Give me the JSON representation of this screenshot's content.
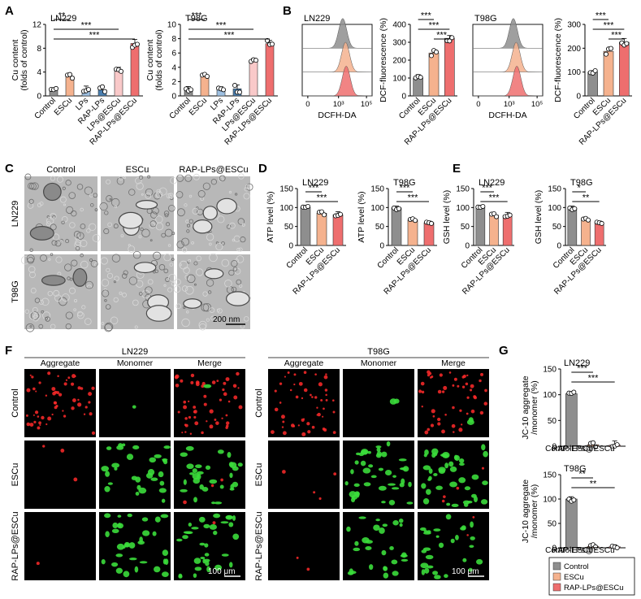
{
  "colors": {
    "control": "#8e8e8e",
    "escu": "#f5b28e",
    "rap": "#ee6e6e",
    "lps": "#9ec0e2",
    "rap_lps": "#4a7fb0",
    "lps_escu": "#f9c9c9",
    "micro_bg": "#b8b8b8"
  },
  "panels": {
    "A": "A",
    "B": "B",
    "C": "C",
    "D": "D",
    "E": "E",
    "F": "F",
    "G": "G"
  },
  "chart_data": [
    {
      "id": "A-LN229",
      "type": "bar",
      "title": "LN229",
      "ylabel": "Cu content (folds of control)",
      "ylim": [
        0,
        12
      ],
      "yticks": [
        "0",
        "4",
        "8",
        "12"
      ],
      "categories": [
        "Control",
        "ESCu",
        "LPs",
        "RAP-LPs",
        "LPs@ESCu",
        "RAP-LPs@ESCu"
      ],
      "values": [
        1.0,
        3.3,
        1.0,
        1.0,
        4.3,
        8.8
      ],
      "bar_colors": [
        "control",
        "escu",
        "lps",
        "rap_lps",
        "lps_escu",
        "rap"
      ],
      "significance": [
        {
          "from": 0,
          "to": 1,
          "label": "**"
        },
        {
          "from": 0,
          "to": 4,
          "label": "***"
        },
        {
          "from": 0,
          "to": 5,
          "label": "***"
        }
      ]
    },
    {
      "id": "A-T98G",
      "type": "bar",
      "title": "T98G",
      "ylabel": "Cu content (folds of control)",
      "ylim": [
        0,
        10
      ],
      "yticks": [
        "0",
        "2",
        "4",
        "6",
        "8",
        "10"
      ],
      "categories": [
        "Control",
        "ESCu",
        "LPs",
        "RAP-LPs",
        "LPs@ESCu",
        "RAP-LPs@ESCu"
      ],
      "values": [
        1.0,
        2.8,
        1.0,
        1.0,
        5.0,
        7.3
      ],
      "bar_colors": [
        "control",
        "escu",
        "lps",
        "rap_lps",
        "lps_escu",
        "rap"
      ],
      "significance": [
        {
          "from": 0,
          "to": 1,
          "label": "***"
        },
        {
          "from": 0,
          "to": 4,
          "label": "***"
        },
        {
          "from": 0,
          "to": 5,
          "label": "***"
        }
      ]
    },
    {
      "id": "B-LN229-hist",
      "type": "histogram",
      "title": "LN229",
      "xlabel": "DCFH-DA",
      "xticks": [
        "0",
        "10³",
        "10⁵"
      ],
      "series": [
        "control",
        "escu",
        "rap"
      ]
    },
    {
      "id": "B-LN229-bar",
      "type": "bar",
      "title": "",
      "ylabel": "DCF-fluorescence (%)",
      "ylim": [
        0,
        400
      ],
      "yticks": [
        "0",
        "100",
        "200",
        "300",
        "400"
      ],
      "categories": [
        "Control",
        "ESCu",
        "RAP-LPs@ESCu"
      ],
      "values": [
        100,
        240,
        322
      ],
      "bar_colors": [
        "control",
        "escu",
        "rap"
      ],
      "significance": [
        {
          "from": 0,
          "to": 1,
          "label": "***"
        },
        {
          "from": 0,
          "to": 2,
          "label": "***"
        },
        {
          "from": 1,
          "to": 2,
          "label": "***"
        }
      ]
    },
    {
      "id": "B-T98G-hist",
      "type": "histogram",
      "title": "T98G",
      "xlabel": "DCFH-DA",
      "xticks": [
        "0",
        "10³",
        "10⁵"
      ],
      "series": [
        "control",
        "escu",
        "rap"
      ]
    },
    {
      "id": "B-T98G-bar",
      "type": "bar",
      "title": "",
      "ylabel": "DCF-fluorescence (%)",
      "ylim": [
        0,
        300
      ],
      "yticks": [
        "0",
        "100",
        "200",
        "300"
      ],
      "categories": [
        "Control",
        "ESCu",
        "RAP-LPs@ESCu"
      ],
      "values": [
        100,
        187,
        225
      ],
      "bar_colors": [
        "control",
        "escu",
        "rap"
      ],
      "significance": [
        {
          "from": 0,
          "to": 1,
          "label": "***"
        },
        {
          "from": 0,
          "to": 2,
          "label": "***"
        },
        {
          "from": 1,
          "to": 2,
          "label": "***"
        }
      ]
    },
    {
      "id": "D-LN229",
      "type": "bar",
      "title": "LN229",
      "ylabel": "ATP level (%)",
      "ylim": [
        0,
        150
      ],
      "yticks": [
        "0",
        "50",
        "100",
        "150"
      ],
      "categories": [
        "Control",
        "ESCu",
        "RAP-LPs@ESCu"
      ],
      "values": [
        100,
        85,
        81
      ],
      "bar_colors": [
        "control",
        "escu",
        "rap"
      ],
      "significance": [
        {
          "from": 0,
          "to": 1,
          "label": "***"
        },
        {
          "from": 0,
          "to": 2,
          "label": "***"
        }
      ]
    },
    {
      "id": "D-T98G",
      "type": "bar",
      "title": "T98G",
      "ylabel": "ATP level (%)",
      "ylim": [
        0,
        150
      ],
      "yticks": [
        "0",
        "50",
        "100",
        "150"
      ],
      "categories": [
        "Control",
        "ESCu",
        "RAP-LPs@ESCu"
      ],
      "values": [
        99,
        67,
        60
      ],
      "bar_colors": [
        "control",
        "escu",
        "rap"
      ],
      "significance": [
        {
          "from": 0,
          "to": 1,
          "label": "***"
        },
        {
          "from": 0,
          "to": 2,
          "label": "***"
        }
      ]
    },
    {
      "id": "E-LN229",
      "type": "bar",
      "title": "LN229",
      "ylabel": "GSH level (%)",
      "ylim": [
        0,
        150
      ],
      "yticks": [
        "0",
        "50",
        "100",
        "150"
      ],
      "categories": [
        "Control",
        "ESCu",
        "RAP-LPs@ESCu"
      ],
      "values": [
        100,
        80,
        79
      ],
      "bar_colors": [
        "control",
        "escu",
        "rap"
      ],
      "significance": [
        {
          "from": 0,
          "to": 1,
          "label": "***"
        },
        {
          "from": 0,
          "to": 2,
          "label": "***"
        }
      ]
    },
    {
      "id": "E-T98G",
      "type": "bar",
      "title": "T98G",
      "ylabel": "GSH level (%)",
      "ylim": [
        0,
        150
      ],
      "yticks": [
        "0",
        "50",
        "100",
        "150"
      ],
      "categories": [
        "Control",
        "ESCu",
        "RAP-LPs@ESCu"
      ],
      "values": [
        99,
        68,
        60
      ],
      "bar_colors": [
        "control",
        "escu",
        "rap"
      ],
      "significance": [
        {
          "from": 0,
          "to": 1,
          "label": "*"
        },
        {
          "from": 0,
          "to": 2,
          "label": "**"
        }
      ]
    },
    {
      "id": "G-LN229",
      "type": "bar",
      "title": "LN229",
      "ylabel": "JC-10 aggregate /monomer (%)",
      "ylim": [
        0,
        150
      ],
      "yticks": [
        "0",
        "50",
        "100",
        "150"
      ],
      "categories": [
        "Control",
        "ESCu",
        "RAP-LPs@ESCu"
      ],
      "values": [
        102,
        3,
        2
      ],
      "bar_colors": [
        "control",
        "escu",
        "rap"
      ],
      "significance": [
        {
          "from": 0,
          "to": 1,
          "label": "***"
        },
        {
          "from": 0,
          "to": 2,
          "label": "***"
        }
      ]
    },
    {
      "id": "G-T98G",
      "type": "bar",
      "title": "T98G",
      "ylabel": "JC-10 aggregate /monomer (%)",
      "ylim": [
        0,
        150
      ],
      "yticks": [
        "0",
        "50",
        "100",
        "150"
      ],
      "categories": [
        "Control",
        "ESCu",
        "RAP-LPs@ESCu"
      ],
      "values": [
        100,
        3,
        2
      ],
      "bar_colors": [
        "control",
        "escu",
        "rap"
      ],
      "significance": [
        {
          "from": 0,
          "to": 1,
          "label": "**"
        },
        {
          "from": 0,
          "to": 2,
          "label": "**"
        }
      ]
    }
  ],
  "panel_c": {
    "columns": [
      "Control",
      "ESCu",
      "RAP-LPs@ESCu"
    ],
    "rows": [
      "LN229",
      "T98G"
    ],
    "scale_bar": "200 nm"
  },
  "panel_f": {
    "groups": [
      "LN229",
      "T98G"
    ],
    "columns": [
      "Aggregate",
      "Monomer",
      "Merge"
    ],
    "rows": [
      "Control",
      "ESCu",
      "RAP-LPs@ESCu"
    ],
    "scale_bar": "100 μm",
    "green_level": {
      "LN229": [
        0.02,
        0.55,
        0.6
      ],
      "T98G": [
        0.03,
        0.75,
        0.5
      ]
    },
    "red_level": {
      "LN229": [
        0.75,
        0.04,
        0.02
      ],
      "T98G": [
        0.7,
        0.06,
        0.03
      ]
    }
  },
  "legend_g": [
    {
      "label": "Control",
      "color": "control"
    },
    {
      "label": "ESCu",
      "color": "escu"
    },
    {
      "label": "RAP-LPs@ESCu",
      "color": "rap"
    }
  ]
}
